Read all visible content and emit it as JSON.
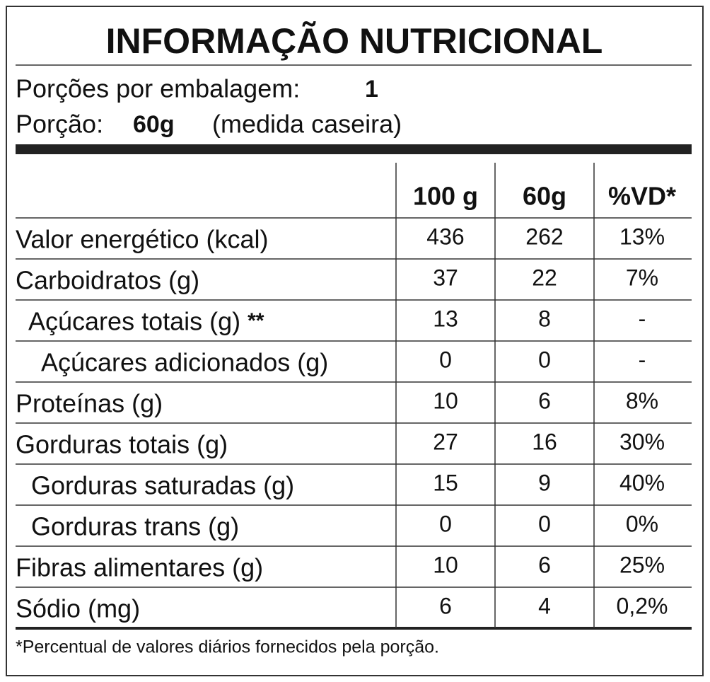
{
  "title": "INFORMAÇÃO NUTRICIONAL",
  "servings": {
    "label": "Porções por embalagem:",
    "value": "1"
  },
  "serving_size": {
    "label": "Porção:",
    "value": "60g",
    "note": "(medida caseira)"
  },
  "table": {
    "header": [
      "100 g",
      "60g",
      "%VD*"
    ],
    "rows": [
      {
        "label": "Valor energético (kcal)",
        "cells": [
          "436",
          "262",
          "13%"
        ]
      },
      {
        "label": "Carboidratos (g)",
        "cells": [
          "37",
          "22",
          "7%"
        ]
      },
      {
        "label": "Açúcares totais (g)",
        "mark": "**",
        "cells": [
          "13",
          "8",
          "-"
        ]
      },
      {
        "label": "Açúcares adicionados (g)",
        "cells": [
          "0",
          "0",
          "-"
        ]
      },
      {
        "label": "Proteínas (g)",
        "cells": [
          "10",
          "6",
          "8%"
        ]
      },
      {
        "label": "Gorduras totais (g)",
        "cells": [
          "27",
          "16",
          "30%"
        ]
      },
      {
        "label": "Gorduras saturadas (g)",
        "cells": [
          "15",
          "9",
          "40%"
        ]
      },
      {
        "label": "Gorduras trans (g)",
        "cells": [
          "0",
          "0",
          "0%"
        ]
      },
      {
        "label": "Fibras alimentares (g)",
        "cells": [
          "10",
          "6",
          "25%"
        ]
      },
      {
        "label": "Sódio (mg)",
        "cells": [
          "6",
          "4",
          "0,2%"
        ]
      }
    ]
  },
  "footnote": "*Percentual de valores diários fornecidos pela porção."
}
